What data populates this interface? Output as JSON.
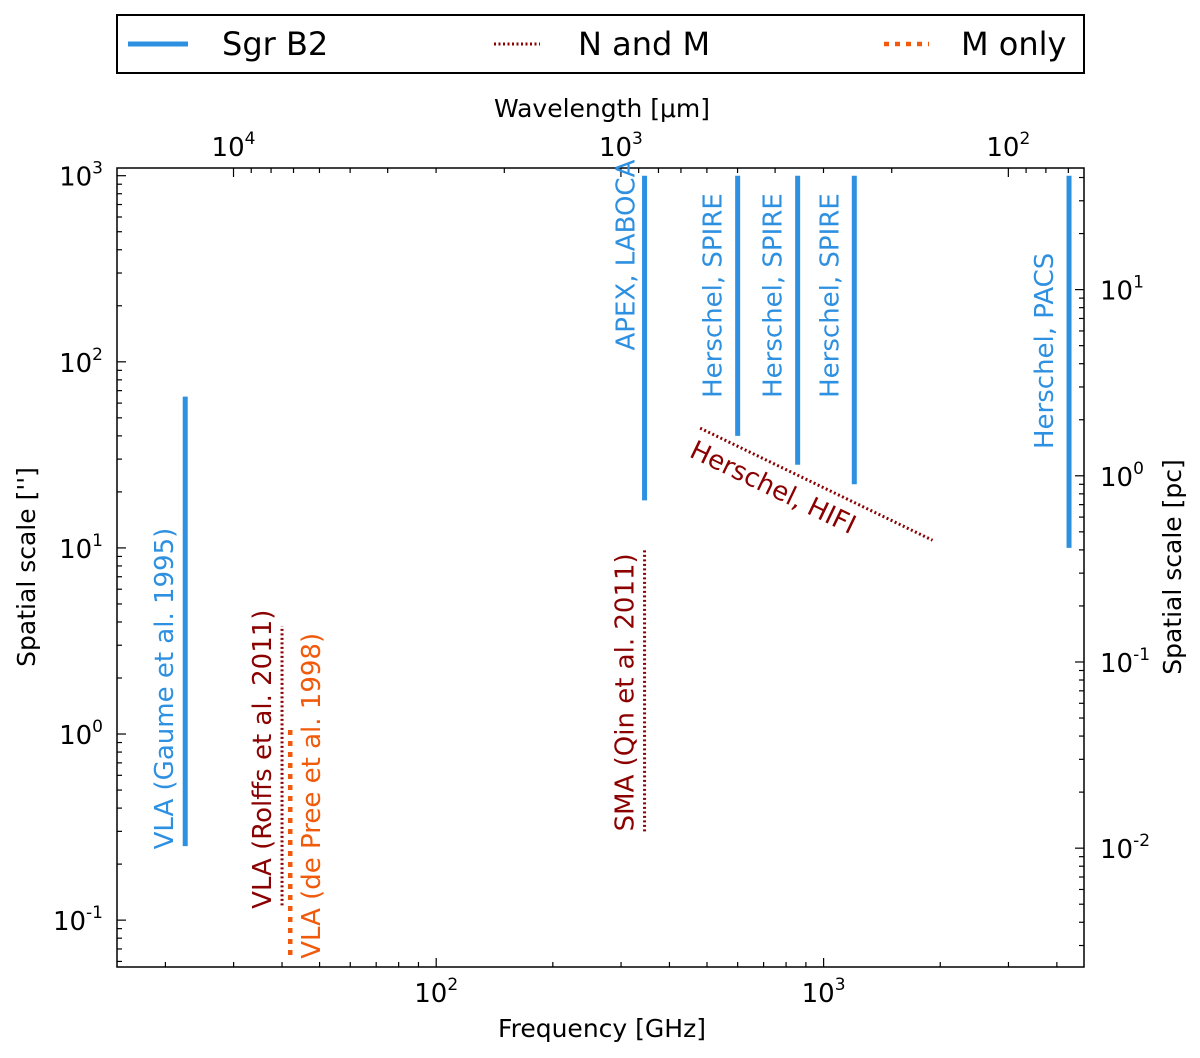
{
  "chart_data": {
    "type": "line",
    "title": "",
    "xlabel": "Frequency [GHz]",
    "ylabel": "Spatial scale ['']",
    "x2label": "Wavelength [μm]",
    "y2label": "Spatial scale [pc]",
    "xscale": "log",
    "yscale": "log",
    "xlim": [
      15,
      4700
    ],
    "ylim": [
      0.056,
      1100
    ],
    "y2lim": [
      0.0023,
      45
    ],
    "grid": false,
    "legend_position": "top, outside plot",
    "colors": {
      "sgrb2": "#2e90e0",
      "n_and_m": "#8b0000",
      "m_only": "#f05a0a"
    },
    "x_ticks": [
      {
        "base": "10",
        "exp": "2",
        "value": 100
      },
      {
        "base": "10",
        "exp": "3",
        "value": 1000
      }
    ],
    "y_ticks": [
      {
        "base": "10",
        "exp": "-1",
        "value": 0.1
      },
      {
        "base": "10",
        "exp": "0",
        "value": 1
      },
      {
        "base": "10",
        "exp": "1",
        "value": 10
      },
      {
        "base": "10",
        "exp": "2",
        "value": 100
      },
      {
        "base": "10",
        "exp": "3",
        "value": 1000
      }
    ],
    "x2_ticks": [
      {
        "base": "10",
        "exp": "4",
        "value": 10000
      },
      {
        "base": "10",
        "exp": "3",
        "value": 1000
      },
      {
        "base": "10",
        "exp": "2",
        "value": 100
      }
    ],
    "y2_ticks": [
      {
        "base": "10",
        "exp": "-2",
        "value": 0.01
      },
      {
        "base": "10",
        "exp": "-1",
        "value": 0.1
      },
      {
        "base": "10",
        "exp": "0",
        "value": 1
      },
      {
        "base": "10",
        "exp": "1",
        "value": 10
      }
    ],
    "legend": [
      {
        "label": "Sgr B2",
        "group": "sgrb2"
      },
      {
        "label": "N and M",
        "group": "n_and_m"
      },
      {
        "label": "M only",
        "group": "m_only"
      }
    ],
    "series": [
      {
        "name": "VLA (Gaume et al. 1995)",
        "group": "sgrb2",
        "x": [
          22.5,
          22.5
        ],
        "y": [
          0.25,
          65
        ]
      },
      {
        "name": "VLA (Rolffs et al. 2011)",
        "group": "n_and_m",
        "x": [
          40,
          40
        ],
        "y": [
          0.12,
          3.8
        ]
      },
      {
        "name": "VLA (de Pree et al. 1998)",
        "group": "m_only",
        "x": [
          42,
          42
        ],
        "y": [
          0.065,
          1.1
        ]
      },
      {
        "name": "SMA (Qin et al. 2011)",
        "group": "n_and_m",
        "x": [
          345,
          345
        ],
        "y": [
          0.3,
          10
        ]
      },
      {
        "name": "APEX, LABOCA",
        "group": "sgrb2",
        "x": [
          345,
          345
        ],
        "y": [
          18,
          1000
        ]
      },
      {
        "name": "Herschel, SPIRE",
        "group": "sgrb2",
        "x": [
          600,
          600
        ],
        "y": [
          40,
          1000
        ]
      },
      {
        "name": "Herschel, SPIRE",
        "group": "sgrb2",
        "x": [
          857,
          857
        ],
        "y": [
          28,
          1000
        ]
      },
      {
        "name": "Herschel, SPIRE",
        "group": "sgrb2",
        "x": [
          1200,
          1200
        ],
        "y": [
          22,
          1000
        ]
      },
      {
        "name": "Herschel, PACS",
        "group": "sgrb2",
        "x": [
          4300,
          4300
        ],
        "y": [
          10,
          1000
        ]
      },
      {
        "name": "Herschel, HIFI",
        "group": "n_and_m",
        "x": [
          480,
          1910
        ],
        "y": [
          44,
          11
        ]
      }
    ]
  }
}
